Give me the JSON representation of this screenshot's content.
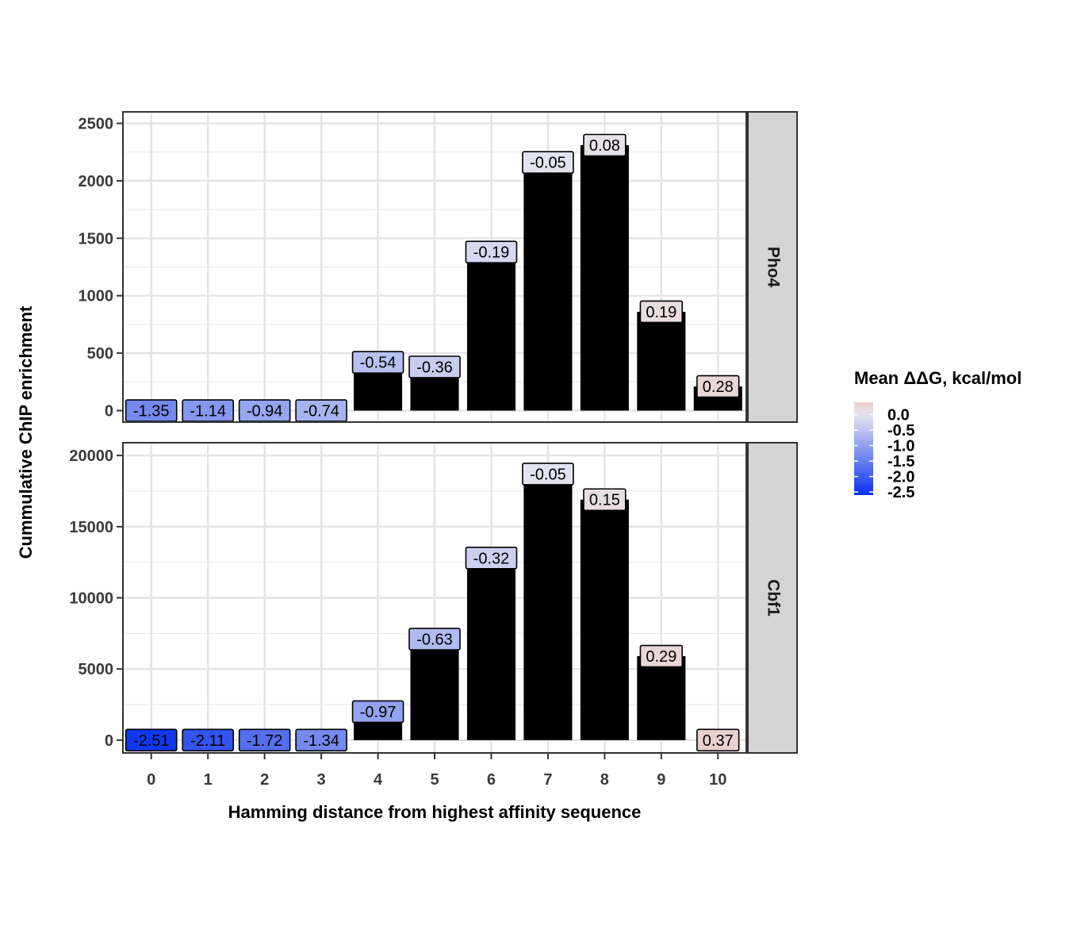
{
  "chart_data": {
    "type": "bar",
    "xlabel": "Hamming distance from highest affinity sequence",
    "ylabel": "Cummulative ChIP enrichment",
    "categories": [
      "0",
      "1",
      "2",
      "3",
      "4",
      "5",
      "6",
      "7",
      "8",
      "9",
      "10"
    ],
    "panels": [
      {
        "name": "Pho4",
        "ylim": [
          -100,
          2600
        ],
        "yticks": [
          0,
          500,
          1000,
          1500,
          2000,
          2500
        ],
        "values": [
          0,
          0,
          0,
          0,
          420,
          380,
          1380,
          2160,
          2310,
          860,
          210
        ],
        "labels": [
          -1.35,
          -1.14,
          -0.94,
          -0.74,
          -0.54,
          -0.36,
          -0.19,
          -0.05,
          0.08,
          0.19,
          0.28
        ]
      },
      {
        "name": "Cbf1",
        "ylim": [
          -900,
          20900
        ],
        "yticks": [
          0,
          5000,
          10000,
          15000,
          20000
        ],
        "values": [
          0,
          0,
          0,
          0,
          2000,
          7100,
          12800,
          18700,
          16900,
          5900,
          0
        ],
        "labels": [
          -2.51,
          -2.11,
          -1.72,
          -1.34,
          -0.97,
          -0.63,
          -0.32,
          -0.05,
          0.15,
          0.29,
          0.37
        ]
      }
    ],
    "bar_color": "#000000",
    "legend": {
      "title": "Mean ΔΔG, kcal/mol",
      "ticks": [
        "0.0",
        "-0.5",
        "-1.0",
        "-1.5",
        "-2.0",
        "-2.5"
      ],
      "tick_values": [
        0.0,
        -0.5,
        -1.0,
        -1.5,
        -2.0,
        -2.5
      ],
      "range": [
        -2.6,
        0.4
      ],
      "low_color": "#0a32ee",
      "mid_color": "#e6e6ef",
      "high_color": "#e8d0cc",
      "position": "right"
    },
    "grid": true
  }
}
